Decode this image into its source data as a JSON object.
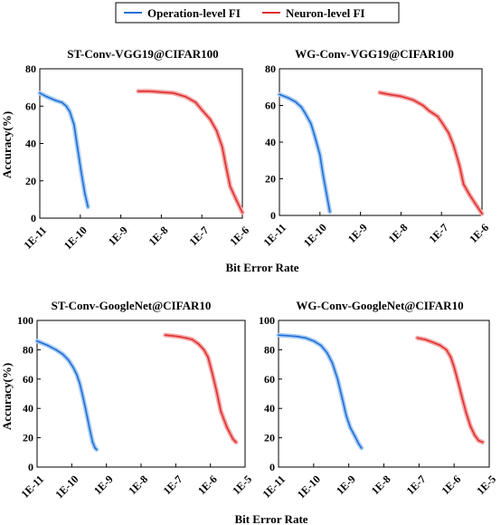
{
  "legend": [
    {
      "label": "Operation-level FI",
      "color": "#1f6fd6",
      "halo": "#a9ccf2"
    },
    {
      "label": "Neuron-level FI",
      "color": "#e03030",
      "halo": "#f3a7a7"
    }
  ],
  "chart_data": [
    {
      "type": "line",
      "title": "ST-Conv-VGG19@CIFAR100",
      "xlabel": "Bit Error Rate",
      "ylabel": "Accuracy(%)",
      "x_scale": "log",
      "xlim": [
        1e-11,
        1e-06
      ],
      "ylim": [
        0,
        80
      ],
      "yticks": [
        0,
        20,
        40,
        60,
        80
      ],
      "xticks": [
        1e-11,
        1e-10,
        1e-09,
        1e-08,
        1e-07,
        1e-06
      ],
      "xtick_labels": [
        "1E-11",
        "1E-10",
        "1E-9",
        "1E-8",
        "1E-7",
        "1E-6"
      ],
      "series": [
        {
          "name": "Operation-level FI",
          "points": [
            [
              1e-11,
              67
            ],
            [
              1.5e-11,
              65
            ],
            [
              2.5e-11,
              63
            ],
            [
              3.5e-11,
              62
            ],
            [
              4.5e-11,
              60
            ],
            [
              5.5e-11,
              57
            ],
            [
              7e-11,
              50
            ],
            [
              8.5e-11,
              38
            ],
            [
              1.05e-10,
              25
            ],
            [
              1.3e-10,
              13
            ],
            [
              1.55e-10,
              6
            ]
          ]
        },
        {
          "name": "Neuron-level FI",
          "points": [
            [
              2.7e-09,
              68
            ],
            [
              5e-09,
              68
            ],
            [
              1e-08,
              67.5
            ],
            [
              2e-08,
              67
            ],
            [
              4e-08,
              65
            ],
            [
              7e-08,
              62
            ],
            [
              1e-07,
              58
            ],
            [
              1.6e-07,
              53
            ],
            [
              2.3e-07,
              47
            ],
            [
              3.2e-07,
              38
            ],
            [
              4e-07,
              27
            ],
            [
              5e-07,
              17
            ],
            [
              7e-07,
              10
            ],
            [
              1e-06,
              3
            ]
          ]
        }
      ]
    },
    {
      "type": "line",
      "title": "WG-Conv-VGG19@CIFAR100",
      "xlabel": "Bit Error Rate",
      "ylabel": "",
      "x_scale": "log",
      "xlim": [
        1e-11,
        1e-06
      ],
      "ylim": [
        0,
        80
      ],
      "yticks": [
        0,
        20,
        40,
        60,
        80
      ],
      "xticks": [
        1e-11,
        1e-10,
        1e-09,
        1e-08,
        1e-07,
        1e-06
      ],
      "xtick_labels": [
        "1E-11",
        "1E-10",
        "1E-9",
        "1E-8",
        "1E-7",
        "1E-6"
      ],
      "series": [
        {
          "name": "Operation-level FI",
          "points": [
            [
              1e-11,
              66
            ],
            [
              1.7e-11,
              64
            ],
            [
              2.5e-11,
              62
            ],
            [
              3.5e-11,
              59
            ],
            [
              4.5e-11,
              55
            ],
            [
              6e-11,
              50
            ],
            [
              7.5e-11,
              43
            ],
            [
              1e-10,
              33
            ],
            [
              1.2e-10,
              22
            ],
            [
              1.45e-10,
              12
            ],
            [
              1.75e-10,
              2
            ]
          ]
        },
        {
          "name": "Neuron-level FI",
          "points": [
            [
              3e-09,
              67
            ],
            [
              5e-09,
              66
            ],
            [
              1e-08,
              65
            ],
            [
              2e-08,
              63
            ],
            [
              3.5e-08,
              60
            ],
            [
              5e-08,
              57
            ],
            [
              8e-08,
              54
            ],
            [
              1e-07,
              51
            ],
            [
              1.5e-07,
              45
            ],
            [
              2e-07,
              38
            ],
            [
              2.8e-07,
              27
            ],
            [
              3.5e-07,
              17
            ],
            [
              5e-07,
              11
            ],
            [
              7e-07,
              6
            ],
            [
              1e-06,
              1
            ]
          ]
        }
      ]
    },
    {
      "type": "line",
      "title": "ST-Conv-GoogleNet@CIFAR10",
      "xlabel": "Bit Error Rate",
      "ylabel": "Accuracy(%)",
      "x_scale": "log",
      "xlim": [
        1e-11,
        1e-05
      ],
      "ylim": [
        0,
        100
      ],
      "yticks": [
        0,
        20,
        40,
        60,
        80,
        100
      ],
      "xticks": [
        1e-11,
        1e-10,
        1e-09,
        1e-08,
        1e-07,
        1e-06,
        1e-05
      ],
      "xtick_labels": [
        "1E-11",
        "1E-10",
        "1E-9",
        "1E-8",
        "1E-7",
        "1E-6",
        "1E-5"
      ],
      "series": [
        {
          "name": "Operation-level FI",
          "points": [
            [
              1e-11,
              86
            ],
            [
              2e-11,
              83
            ],
            [
              3.5e-11,
              80
            ],
            [
              5.5e-11,
              77
            ],
            [
              8e-11,
              73
            ],
            [
              1.1e-10,
              68
            ],
            [
              1.4e-10,
              63
            ],
            [
              1.7e-10,
              57
            ],
            [
              2.1e-10,
              48
            ],
            [
              2.6e-10,
              38
            ],
            [
              3.3e-10,
              26
            ],
            [
              4e-10,
              17
            ],
            [
              4.7e-10,
              13
            ],
            [
              5.2e-10,
              12
            ]
          ]
        },
        {
          "name": "Neuron-level FI",
          "points": [
            [
              5e-08,
              90
            ],
            [
              8e-08,
              89.5
            ],
            [
              1.2e-07,
              89
            ],
            [
              2e-07,
              88
            ],
            [
              3e-07,
              87
            ],
            [
              4.5e-07,
              84
            ],
            [
              6.5e-07,
              80
            ],
            [
              8.5e-07,
              75
            ],
            [
              1.1e-06,
              65
            ],
            [
              1.5e-06,
              52
            ],
            [
              2e-06,
              38
            ],
            [
              3e-06,
              27
            ],
            [
              4.5e-06,
              19
            ],
            [
              5.5e-06,
              17
            ]
          ]
        }
      ]
    },
    {
      "type": "line",
      "title": "WG-Conv-GoogleNet@CIFAR10",
      "xlabel": "Bit Error Rate",
      "ylabel": "",
      "x_scale": "log",
      "xlim": [
        1e-11,
        1e-05
      ],
      "ylim": [
        0,
        100
      ],
      "yticks": [
        0,
        20,
        40,
        60,
        80,
        100
      ],
      "xticks": [
        1e-11,
        1e-10,
        1e-09,
        1e-08,
        1e-07,
        1e-06,
        1e-05
      ],
      "xtick_labels": [
        "1E-11",
        "1E-10",
        "1E-9",
        "1E-8",
        "1E-7",
        "1E-6",
        "1E-5"
      ],
      "series": [
        {
          "name": "Operation-level FI",
          "points": [
            [
              1e-11,
              90
            ],
            [
              2e-11,
              89.5
            ],
            [
              3.5e-11,
              89
            ],
            [
              6e-11,
              88
            ],
            [
              1e-10,
              86
            ],
            [
              1.6e-10,
              83
            ],
            [
              2.4e-10,
              78
            ],
            [
              3.4e-10,
              71
            ],
            [
              4.8e-10,
              60
            ],
            [
              6.5e-10,
              47
            ],
            [
              8.5e-10,
              35
            ],
            [
              1.1e-09,
              27
            ],
            [
              1.5e-09,
              21
            ],
            [
              1.9e-09,
              16
            ],
            [
              2.3e-09,
              13
            ]
          ]
        },
        {
          "name": "Neuron-level FI",
          "points": [
            [
              9e-08,
              88
            ],
            [
              1.5e-07,
              87
            ],
            [
              2.5e-07,
              85
            ],
            [
              4e-07,
              83
            ],
            [
              6e-07,
              80
            ],
            [
              8e-07,
              75
            ],
            [
              1e-06,
              68
            ],
            [
              1.3e-06,
              58
            ],
            [
              1.7e-06,
              47
            ],
            [
              2.2e-06,
              37
            ],
            [
              2.9e-06,
              28
            ],
            [
              3.8e-06,
              22
            ],
            [
              5e-06,
              18
            ],
            [
              6.5e-06,
              17
            ]
          ]
        }
      ]
    }
  ]
}
